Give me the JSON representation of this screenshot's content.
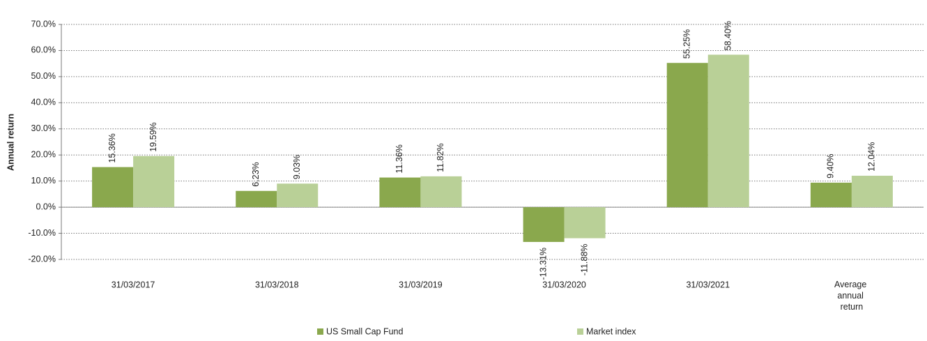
{
  "chart_data": {
    "type": "bar",
    "y_label": "Annual return",
    "categories": [
      "31/03/2017",
      "31/03/2018",
      "31/03/2019",
      "31/03/2020",
      "31/03/2021",
      "Average annual return"
    ],
    "series": [
      {
        "name": "US Small Cap Fund",
        "color": "#8aa84d",
        "values": [
          15.36,
          6.23,
          11.36,
          -13.31,
          55.25,
          9.4
        ],
        "value_labels": [
          "15.36%",
          "6.23%",
          "11.36%",
          "-13.31%",
          "55.25%",
          "9.40%"
        ]
      },
      {
        "name": "Market index",
        "color": "#b9d097",
        "values": [
          19.59,
          9.03,
          11.82,
          -11.88,
          58.4,
          12.04
        ],
        "value_labels": [
          "19.59%",
          "9.03%",
          "11.82%",
          "-11.88%",
          "58.40%",
          "12.04%"
        ]
      }
    ],
    "ylim": [
      -20,
      70
    ],
    "yticks": [
      {
        "value": -20,
        "label": "-20.0%"
      },
      {
        "value": -10,
        "label": "-10.0%"
      },
      {
        "value": 0,
        "label": "0.0%"
      },
      {
        "value": 10,
        "label": "10.0%"
      },
      {
        "value": 20,
        "label": "20.0%"
      },
      {
        "value": 30,
        "label": "30.0%"
      },
      {
        "value": 40,
        "label": "40.0%"
      },
      {
        "value": 50,
        "label": "50.0%"
      },
      {
        "value": 60,
        "label": "60.0%"
      },
      {
        "value": 70,
        "label": "70.0%"
      }
    ],
    "grid": true,
    "legend": "bottom"
  }
}
